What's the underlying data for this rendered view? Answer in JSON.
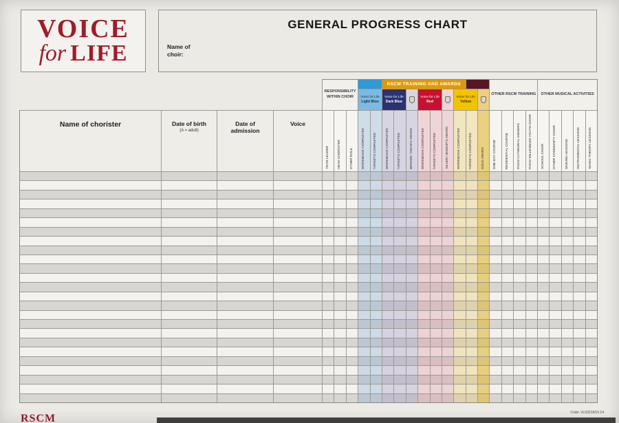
{
  "logo": {
    "word1": "VOICE",
    "word2a": "for",
    "word2b": "LIFE"
  },
  "header": {
    "title": "GENERAL PROGRESS CHART",
    "choir_label_line1": "Name of",
    "choir_label_line2": "choir:"
  },
  "table": {
    "wide_columns": [
      {
        "label": "Name of chorister",
        "sub": ""
      },
      {
        "label": "Date of birth",
        "sub": "(A = adult)"
      },
      {
        "label": "Date of admission",
        "sub": ""
      },
      {
        "label": "Voice",
        "sub": ""
      }
    ],
    "responsibility_group": {
      "title": "RESPONSIBILITY WITHIN CHOIR",
      "columns": [
        "TEAM LEADER",
        "HEAD CHORISTER",
        "OTHER ROLE"
      ]
    },
    "rscm_group": {
      "banner": {
        "text": "RSCM TRAINING AND AWARDS",
        "left_color": "#2e9bd6",
        "bar_color": "#e09a00",
        "right_color": "#571722"
      },
      "levels": [
        {
          "name": "Voice for Life",
          "level": "Light Blue",
          "bg": "#7fb9e0",
          "fg": "#12304e",
          "columns": [
            "WORKBOOK COMPLETED",
            "TARGETS COMPLETED"
          ],
          "award": null,
          "tint": "rgba(125,170,215,0.32)",
          "award_tint": null
        },
        {
          "name": "Voice for Life",
          "level": "Dark Blue",
          "bg": "#2a3272",
          "fg": "#ffffff",
          "columns": [
            "WORKBOOK COMPLETED",
            "TARGETS COMPLETED"
          ],
          "award": "BRONZE / DEAN'S AWARD",
          "tint": "rgba(140,130,190,0.28)",
          "award_tint": "rgba(140,130,190,0.28)"
        },
        {
          "name": "Voice for Life",
          "level": "Red",
          "bg": "#c41230",
          "fg": "#ffffff",
          "columns": [
            "WORKBOOK COMPLETED",
            "TARGETS COMPLETED"
          ],
          "award": "SILVER / BISHOP'S AWARD",
          "tint": "rgba(222,130,150,0.28)",
          "award_tint": "rgba(222,130,150,0.28)"
        },
        {
          "name": "Voice for Life",
          "level": "Yellow",
          "bg": "#f2c400",
          "fg": "#3c3000",
          "columns": [
            "WORKBOOK COMPLETED",
            "TARGETS COMPLETED"
          ],
          "award": "GOLD AWARD",
          "tint": "rgba(235,205,110,0.38)",
          "award_tint": "rgba(226,186,60,0.62)"
        }
      ]
    },
    "other_rscm_group": {
      "title": "OTHER RSCM TRAINING",
      "columns": [
        "ONE-DAY COURSE",
        "RESIDENTIAL COURSE",
        "RSCM CATHEDRAL SINGERS",
        "RSCM MILLENNIUM YOUTH CHOIR"
      ]
    },
    "other_musical_group": {
      "title": "OTHER MUSICAL ACTIVITIES",
      "columns": [
        "SCHOOL CHOIR",
        "OTHER COMMUNITY CHOIR",
        "SINGING LESSONS",
        "INSTRUMENTAL LESSONS",
        "MUSIC THEORY LESSONS"
      ]
    },
    "body_rows": 25
  },
  "footer": {
    "left": "RSCM",
    "code": "Code: VL03218/10.14"
  }
}
